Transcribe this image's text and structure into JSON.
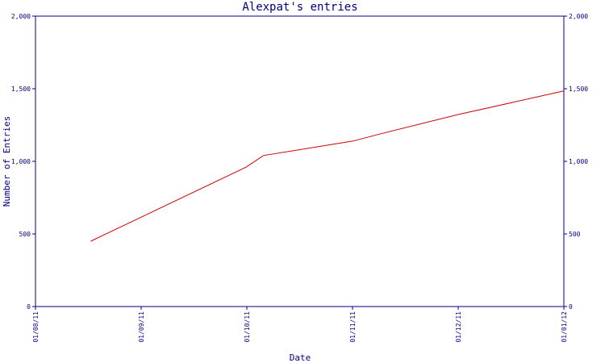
{
  "chart_data": {
    "type": "line",
    "title": "Alexpat's entries",
    "xlabel": "Date",
    "ylabel": "Number of Entries",
    "x_ticks": [
      "01/08/11",
      "01/09/11",
      "01/10/11",
      "01/11/11",
      "01/12/11",
      "01/01/12"
    ],
    "x_range": [
      "2011-08-01",
      "2012-01-01"
    ],
    "y_ticks": [
      "0",
      "500",
      "1,000",
      "1,500",
      "2,000"
    ],
    "ylim": [
      0,
      2000
    ],
    "right_axis_mirrors_left": true,
    "grid": false,
    "colors": {
      "axis": "#000080",
      "line": "#cc0000",
      "text": "#000080"
    },
    "series": [
      {
        "x": [
          "2011-08-17",
          "2011-09-01",
          "2011-10-01",
          "2011-10-06",
          "2011-11-01",
          "2011-11-09",
          "2011-12-01",
          "2012-01-01"
        ],
        "y": [
          450,
          620,
          960,
          1040,
          1140,
          1190,
          1320,
          1485
        ]
      }
    ]
  }
}
